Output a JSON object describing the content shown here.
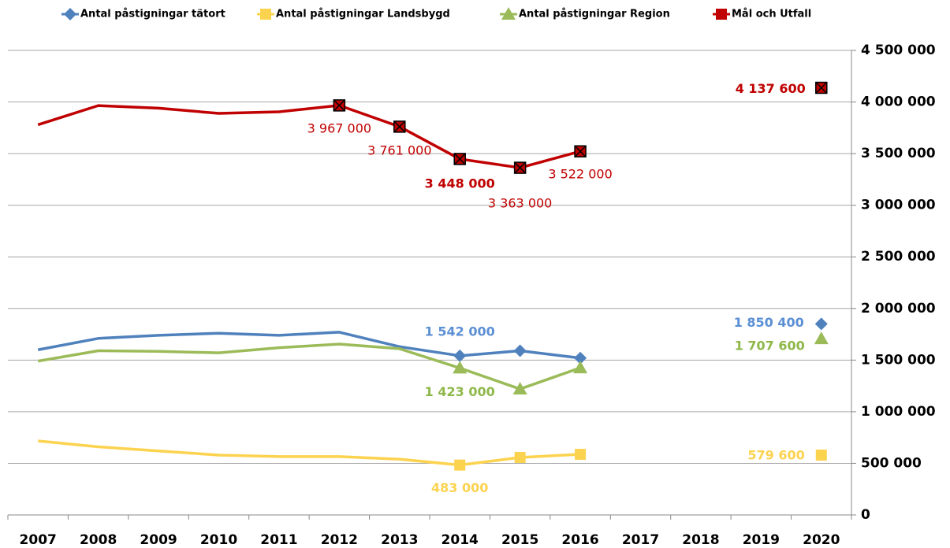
{
  "chart_data": {
    "type": "line",
    "categories": [
      "2007",
      "2008",
      "2009",
      "2010",
      "2011",
      "2012",
      "2013",
      "2014",
      "2015",
      "2016",
      "2017",
      "2018",
      "2019",
      "2020"
    ],
    "series": [
      {
        "name": "Antal påstigningar tätort",
        "color": "#4f81bd",
        "marker": "diamond",
        "label_color": "#5b8fd4",
        "values": [
          1600000,
          1710000,
          1740000,
          1760000,
          1740000,
          1770000,
          1630000,
          1542000,
          1590000,
          1520000,
          null,
          null,
          null,
          1850400
        ],
        "value_labels": [
          null,
          null,
          null,
          null,
          null,
          null,
          null,
          "1 542 000",
          null,
          null,
          null,
          null,
          null,
          "1 850 400"
        ]
      },
      {
        "name": "Antal påstigningar Landsbygd",
        "color": "#fcd34f",
        "marker": "square",
        "label_color": "#fcd34f",
        "values": [
          717000,
          660000,
          620000,
          580000,
          565000,
          565000,
          540000,
          483000,
          557000,
          587000,
          null,
          null,
          null,
          579600
        ],
        "value_labels": [
          null,
          null,
          null,
          null,
          null,
          null,
          null,
          "483 000",
          null,
          null,
          null,
          null,
          null,
          "579 600"
        ]
      },
      {
        "name": "Antal påstigningar Region",
        "color": "#9bbb59",
        "marker": "triangle",
        "label_color": "#8fb84a",
        "values": [
          1490000,
          1590000,
          1585000,
          1570000,
          1620000,
          1655000,
          1610000,
          1423000,
          1220000,
          1425000,
          null,
          null,
          null,
          1707600
        ],
        "value_labels": [
          null,
          null,
          null,
          null,
          null,
          null,
          null,
          "1 423 000",
          null,
          null,
          null,
          null,
          null,
          "1 707 600"
        ]
      },
      {
        "name": "Mål och Utfall",
        "color": "#c00000",
        "marker": "xsquare",
        "label_color": "#c00000",
        "values": [
          3780000,
          3965000,
          3940000,
          3890000,
          3905000,
          3967000,
          3761000,
          3448000,
          3363000,
          3522000,
          null,
          null,
          null,
          4137600
        ],
        "value_labels": [
          null,
          null,
          null,
          null,
          null,
          "3 967 000",
          "3 761 000",
          "3 448 000",
          "3 363 000",
          "3 522 000",
          null,
          null,
          null,
          "4 137 600"
        ]
      }
    ],
    "ylim": [
      0,
      4500000
    ],
    "yticks": [
      0,
      {
        "value": 500000,
        "label": "500 000"
      },
      {
        "value": 1000000,
        "label": "1 000 000"
      },
      {
        "value": 1500000,
        "label": "1 500 000"
      },
      {
        "value": 2000000,
        "label": "2 000 000"
      },
      {
        "value": 2500000,
        "label": "2 500 000"
      },
      {
        "value": 3000000,
        "label": "3 000 000"
      },
      {
        "value": 3500000,
        "label": "3 500 000"
      },
      {
        "value": 4000000,
        "label": "4 000 000"
      },
      {
        "value": 4500000,
        "label": "4 500 000"
      }
    ],
    "grid": true,
    "legend": "top"
  }
}
